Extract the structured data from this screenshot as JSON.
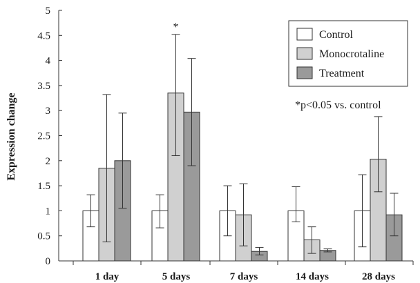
{
  "chart_data": {
    "type": "bar",
    "title": "",
    "xlabel": "",
    "ylabel": "Expression change",
    "ylim": [
      0,
      5
    ],
    "y_ticks": [
      "0",
      "0.5",
      "1",
      "1.5",
      "2",
      "2.5",
      "3",
      "3.5",
      "4",
      "4.5",
      "5"
    ],
    "y_tick_values": [
      0,
      0.5,
      1,
      1.5,
      2,
      2.5,
      3,
      3.5,
      4,
      4.5,
      5
    ],
    "categories": [
      "1 day",
      "5 days",
      "7 days",
      "14 days",
      "28 days"
    ],
    "series": [
      {
        "name": "Control",
        "color": "#ffffff",
        "values": [
          1.0,
          1.0,
          1.0,
          1.0,
          1.0
        ],
        "err_low": [
          0.68,
          0.66,
          0.5,
          0.78,
          0.28
        ],
        "err_high": [
          1.32,
          1.32,
          1.5,
          1.48,
          1.72
        ]
      },
      {
        "name": "Monocrotaline",
        "color": "#d0d0d0",
        "values": [
          1.85,
          3.35,
          0.92,
          0.42,
          2.03
        ],
        "err_low": [
          0.38,
          2.1,
          0.3,
          0.15,
          1.38
        ],
        "err_high": [
          3.32,
          4.52,
          1.54,
          0.68,
          2.88
        ]
      },
      {
        "name": "Treatment",
        "color": "#9a9a9a",
        "values": [
          2.0,
          2.97,
          0.19,
          0.21,
          0.92
        ],
        "err_low": [
          1.05,
          1.9,
          0.12,
          0.18,
          0.5
        ],
        "err_high": [
          2.95,
          4.04,
          0.27,
          0.24,
          1.35
        ]
      }
    ],
    "significance_marks": [
      {
        "category": "5 days",
        "series": "Monocrotaline",
        "label": "*"
      }
    ],
    "legend": {
      "position": "top-right"
    },
    "annotation": "*p<0.05 vs. control",
    "grid": false
  }
}
